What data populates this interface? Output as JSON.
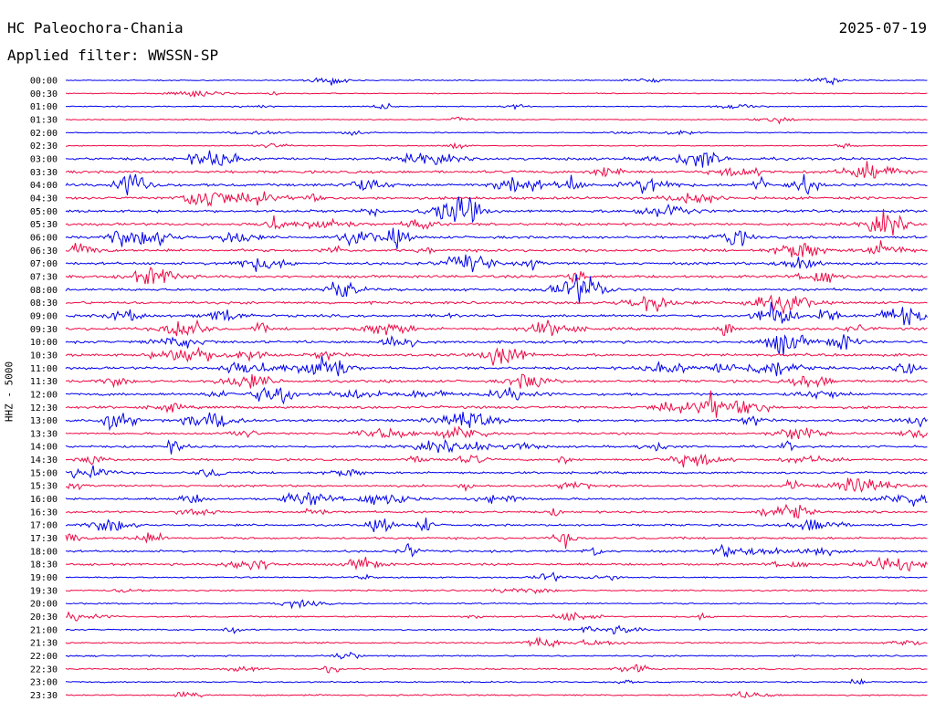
{
  "header": {
    "station": "HC Paleochora-Chania",
    "date": "2025-07-19",
    "filter": "Applied filter: WWSSN-SP"
  },
  "chart_data": {
    "type": "line",
    "subtype": "helicorder",
    "ylabel": "HHZ - 5000",
    "tick_labels": [
      "00:00",
      "00:30",
      "01:00",
      "01:30",
      "02:00",
      "02:30",
      "03:00",
      "03:30",
      "04:00",
      "04:30",
      "05:00",
      "05:30",
      "06:00",
      "06:30",
      "07:00",
      "07:30",
      "08:00",
      "08:30",
      "09:00",
      "09:30",
      "10:00",
      "10:30",
      "11:00",
      "11:30",
      "12:00",
      "12:30",
      "13:00",
      "13:30",
      "14:00",
      "14:30",
      "15:00",
      "15:30",
      "16:00",
      "16:30",
      "17:00",
      "17:30",
      "18:00",
      "18:30",
      "19:00",
      "19:30",
      "20:00",
      "20:30",
      "21:00",
      "21:30",
      "22:00",
      "22:30",
      "23:00",
      "23:30"
    ],
    "trace_colors": [
      "#0000ee",
      "#ee0a46"
    ],
    "grid": false,
    "legend": "none"
  }
}
